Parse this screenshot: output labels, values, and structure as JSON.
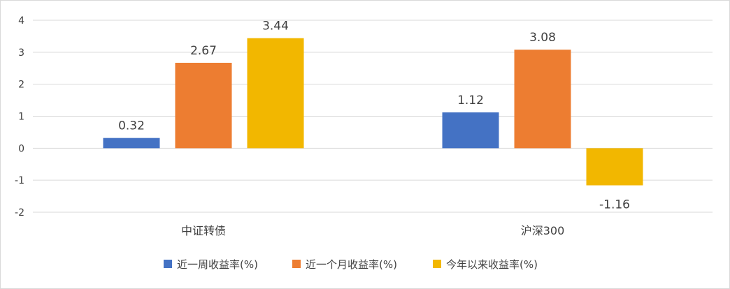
{
  "chart_data": {
    "type": "bar",
    "categories": [
      "中证转债",
      "沪深300"
    ],
    "series": [
      {
        "name": "近一周收益率(%)",
        "values": [
          0.32,
          1.12
        ],
        "color": "#4472C4"
      },
      {
        "name": "近一个月收益率(%)",
        "values": [
          2.67,
          3.08
        ],
        "color": "#ED7D31"
      },
      {
        "name": "今年以来收益率(%)",
        "values": [
          3.44,
          -1.16
        ],
        "color": "#F2B700"
      }
    ],
    "data_labels": [
      [
        "0.32",
        "1.12"
      ],
      [
        "2.67",
        "3.08"
      ],
      [
        "3.44",
        "-1.16"
      ]
    ],
    "y_ticks": [
      -2,
      -1,
      0,
      1,
      2,
      3,
      4
    ],
    "y_tick_labels": [
      "-2",
      "-1",
      "0",
      "1",
      "2",
      "3",
      "4"
    ],
    "ylim": [
      -2,
      4
    ],
    "grid": true,
    "legend_position": "bottom"
  }
}
